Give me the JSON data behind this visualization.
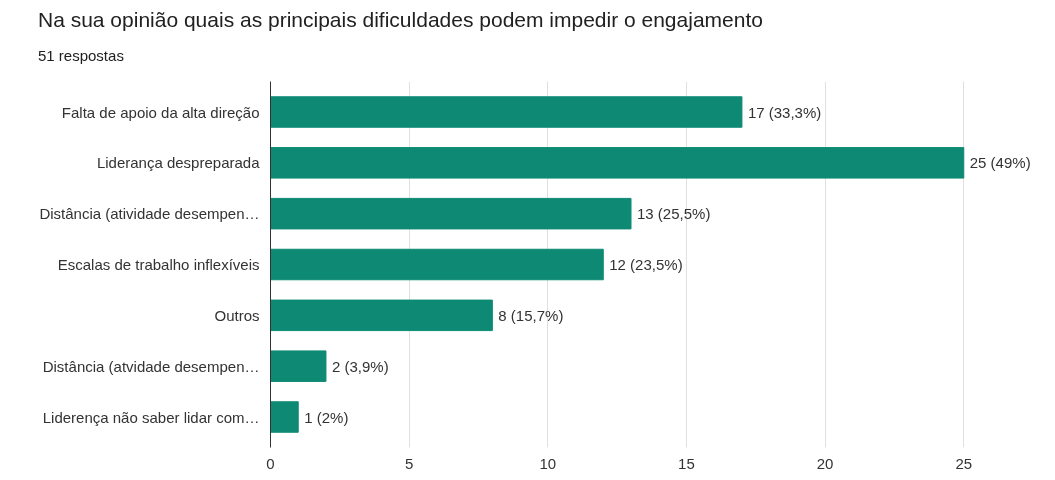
{
  "chart_data": {
    "type": "bar",
    "orientation": "horizontal",
    "title": "Na sua opinião quais as principais dificuldades podem impedir o engajamento",
    "subtitle": "51 respostas",
    "categories": [
      "Falta de apoio da alta direção",
      "Liderança despreparada",
      "Distância (atividade desempen…",
      "Escalas de trabalho inflexíveis",
      "Outros",
      "Distância (atvidade desempen…",
      "Liderença não saber lidar com…"
    ],
    "values": [
      17,
      25,
      13,
      12,
      8,
      2,
      1
    ],
    "value_labels": [
      "17 (33,3%)",
      "25 (49%)",
      "13 (25,5%)",
      "12 (23,5%)",
      "8 (15,7%)",
      "2 (3,9%)",
      "1 (2%)"
    ],
    "color": "#0e8a74",
    "xlim": [
      0,
      25
    ],
    "xticks": [
      0,
      5,
      10,
      15,
      20,
      25
    ],
    "grid": "x"
  }
}
